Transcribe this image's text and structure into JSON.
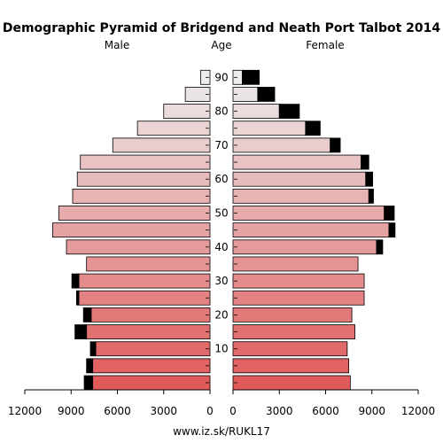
{
  "chart_data": {
    "type": "bar",
    "title": "Demographic Pyramid of Bridgend and Neath Port Talbot 2014",
    "left_label": "Male",
    "center_label": "Age",
    "right_label": "Female",
    "age_ticks": [
      "10",
      "20",
      "30",
      "40",
      "50",
      "60",
      "70",
      "80",
      "90"
    ],
    "x_ticks_male": [
      "12000",
      "9000",
      "6000",
      "3000",
      "0"
    ],
    "x_ticks_female": [
      "0",
      "3000",
      "6000",
      "9000",
      "12000"
    ],
    "xlim": [
      0,
      12000
    ],
    "age_groups": [
      "0-4",
      "5-9",
      "10-14",
      "15-19",
      "20-24",
      "25-29",
      "30-34",
      "35-39",
      "40-44",
      "45-49",
      "50-54",
      "55-59",
      "60-64",
      "65-69",
      "70-74",
      "75-79",
      "80-84",
      "85-89",
      "90+"
    ],
    "series": [
      {
        "name": "Male",
        "values": [
          7600,
          7600,
          7400,
          8000,
          7700,
          8500,
          8500,
          8000,
          9300,
          10200,
          9800,
          8900,
          8600,
          8400,
          6300,
          4700,
          3000,
          1600,
          600
        ],
        "excess": [
          550,
          400,
          350,
          750,
          500,
          150,
          450,
          0,
          0,
          0,
          0,
          0,
          0,
          0,
          0,
          0,
          0,
          0,
          0
        ]
      },
      {
        "name": "Female",
        "values": [
          7600,
          7500,
          7400,
          7900,
          7700,
          8500,
          8500,
          8100,
          9300,
          10100,
          9800,
          8800,
          8600,
          8300,
          6300,
          4700,
          3000,
          1600,
          600
        ],
        "excess": [
          0,
          0,
          0,
          0,
          0,
          0,
          0,
          0,
          400,
          400,
          650,
          300,
          450,
          500,
          650,
          950,
          1300,
          1100,
          1100
        ]
      }
    ],
    "colors": {
      "young": "#e05a5a",
      "old": "#ececec",
      "excess": "#000000",
      "stroke": "#000000"
    },
    "source": "www.iz.sk/RUKL17"
  }
}
